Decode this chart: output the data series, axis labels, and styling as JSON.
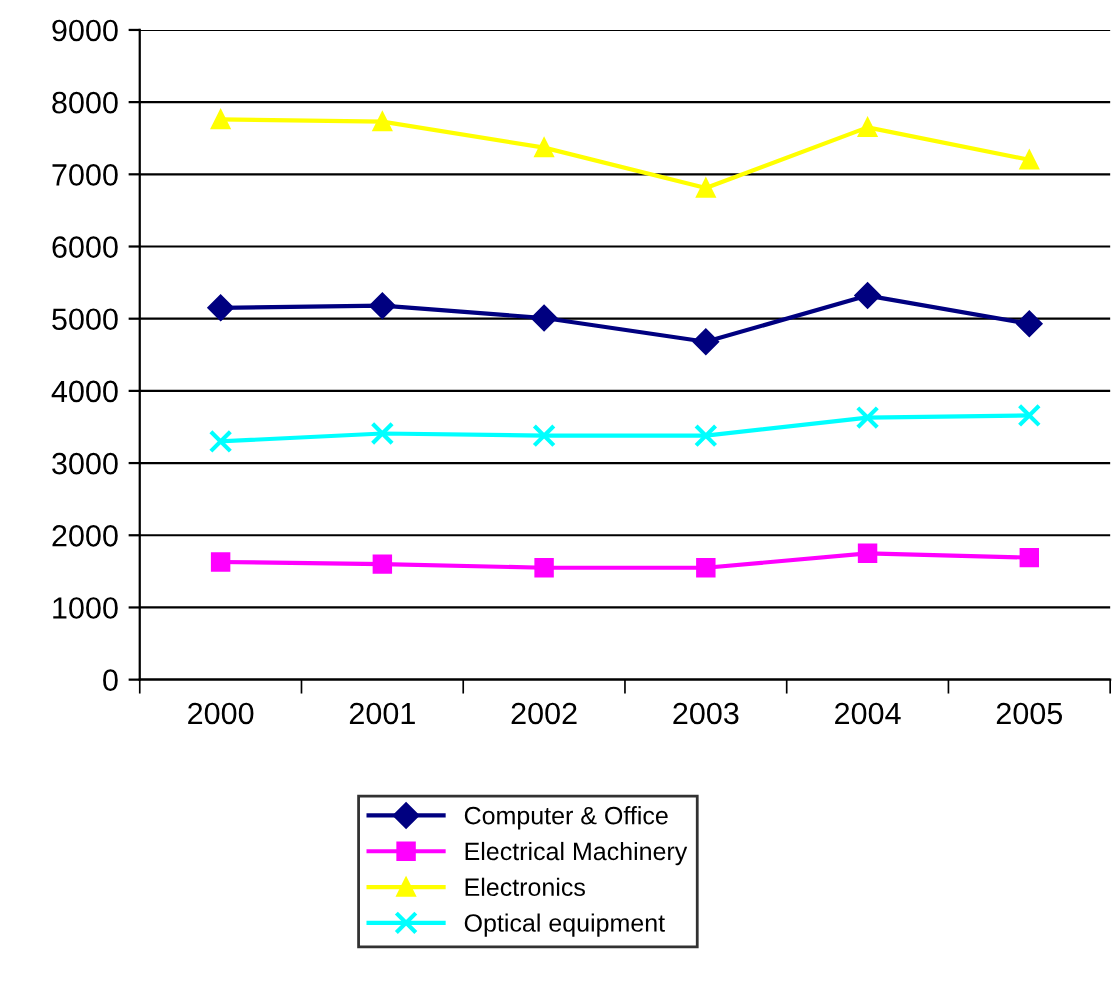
{
  "chart_data": {
    "type": "line",
    "categories": [
      "2000",
      "2001",
      "2002",
      "2003",
      "2004",
      "2005"
    ],
    "ylim": [
      0,
      9000
    ],
    "yticks": [
      0,
      1000,
      2000,
      3000,
      4000,
      5000,
      6000,
      7000,
      8000,
      9000
    ],
    "grid": "y",
    "legend": "bottom",
    "series": [
      {
        "name": "Computer & Office",
        "color": "#000080",
        "marker": "diamond",
        "values": [
          5150,
          5180,
          5010,
          4680,
          5320,
          4930
        ]
      },
      {
        "name": "Electrical Machinery",
        "color": "#ff00ff",
        "marker": "square",
        "values": [
          1630,
          1600,
          1550,
          1550,
          1750,
          1690
        ]
      },
      {
        "name": "Electronics",
        "color": "#ffff00",
        "marker": "triangle",
        "values": [
          7760,
          7730,
          7370,
          6810,
          7650,
          7200
        ]
      },
      {
        "name": "Optical equipment",
        "color": "#00ffff",
        "marker": "cross",
        "values": [
          3300,
          3410,
          3380,
          3380,
          3630,
          3660
        ]
      }
    ]
  }
}
